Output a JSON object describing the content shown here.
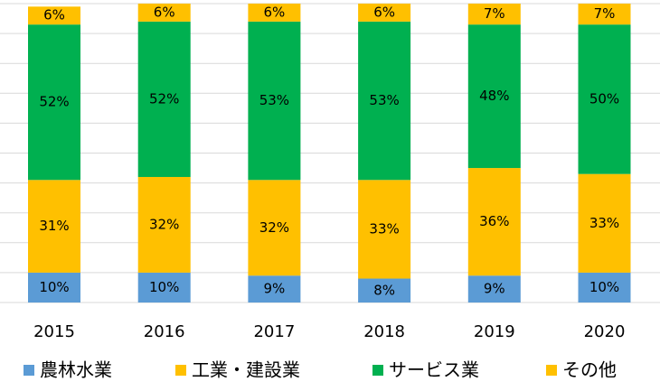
{
  "chart_data": {
    "type": "bar",
    "stacked": true,
    "percent": true,
    "categories": [
      "2015",
      "2016",
      "2017",
      "2018",
      "2019",
      "2020"
    ],
    "series": [
      {
        "name": "農林水業",
        "color": "#5b9bd5",
        "values": [
          10,
          10,
          9,
          8,
          9,
          10
        ],
        "labels": [
          "10%",
          "10%",
          "9%",
          "8%",
          "9%",
          "10%"
        ]
      },
      {
        "name": "工業・建設業",
        "color": "#ffc000",
        "values": [
          31,
          32,
          32,
          33,
          36,
          33
        ],
        "labels": [
          "31%",
          "32%",
          "32%",
          "33%",
          "36%",
          "33%"
        ]
      },
      {
        "name": "サービス業",
        "color": "#00b050",
        "values": [
          52,
          52,
          53,
          53,
          48,
          50
        ],
        "labels": [
          "52%",
          "52%",
          "53%",
          "53%",
          "48%",
          "50%"
        ]
      },
      {
        "name": "その他",
        "color": "#ffc000",
        "values": [
          6,
          6,
          6,
          6,
          7,
          7
        ],
        "labels": [
          "6%",
          "6%",
          "6%",
          "6%",
          "7%",
          "7%"
        ]
      }
    ],
    "ylim": [
      0,
      100
    ],
    "grid": true,
    "legend_position": "bottom"
  }
}
